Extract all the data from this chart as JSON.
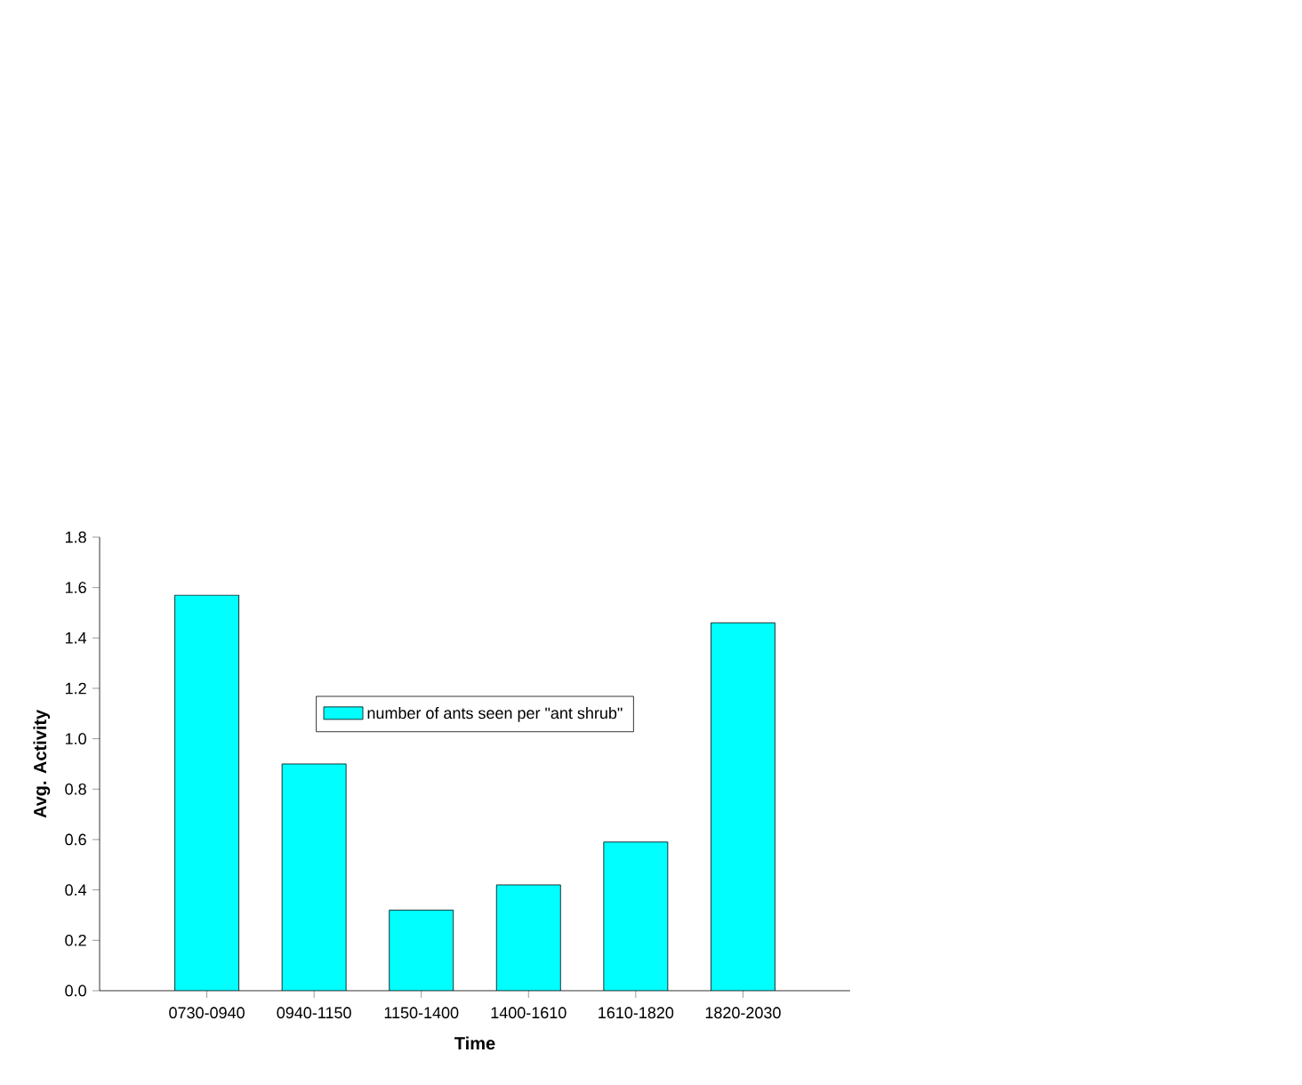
{
  "chart_data": {
    "type": "bar",
    "xlabel": "Time",
    "ylabel": "Avg. Activity",
    "categories": [
      "0730-0940",
      "0940-1150",
      "1150-1400",
      "1400-1610",
      "1610-1820",
      "1820-2030"
    ],
    "series": [
      {
        "name": "number of ants seen per \"ant shrub\"",
        "color": "#00ffff",
        "values": [
          1.57,
          0.9,
          0.32,
          0.42,
          0.59,
          1.46
        ]
      }
    ],
    "ylim": [
      0,
      1.8
    ],
    "yticks": [
      {
        "value": 0,
        "label": "0.0"
      },
      {
        "value": 0.2,
        "label": "0.2"
      },
      {
        "value": 0.4,
        "label": "0.4"
      },
      {
        "value": 0.6,
        "label": "0.6"
      },
      {
        "value": 0.8,
        "label": "0.8"
      },
      {
        "value": 1.0,
        "label": "1.0"
      },
      {
        "value": 1.2,
        "label": "1.2"
      },
      {
        "value": 1.4,
        "label": "1.4"
      },
      {
        "value": 1.6,
        "label": "1.6"
      },
      {
        "value": 1.8,
        "label": "1.8"
      }
    ],
    "legend": "top",
    "grid": false
  }
}
